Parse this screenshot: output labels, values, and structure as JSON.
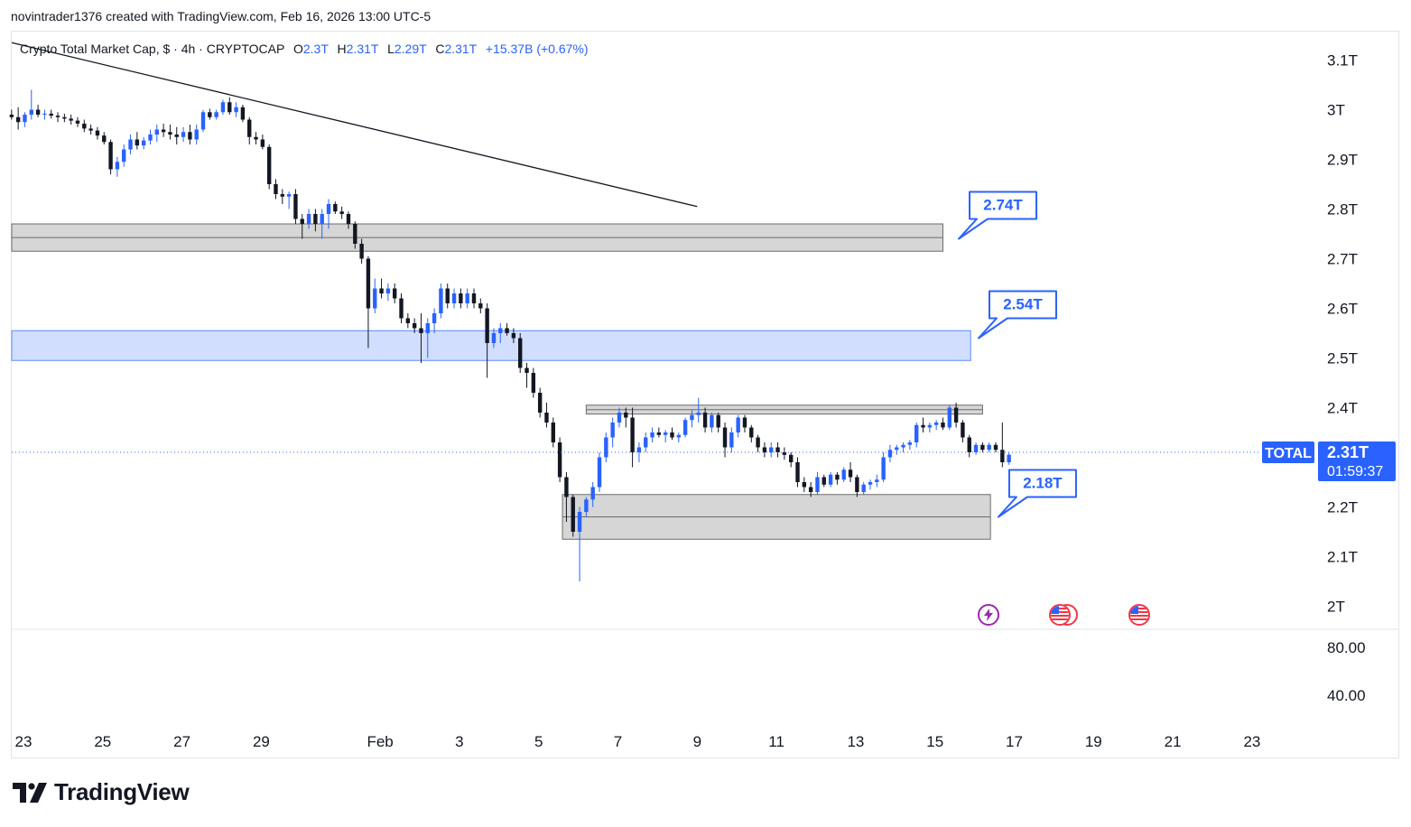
{
  "header": {
    "caption": "novintrader1376 created with TradingView.com, Feb 16, 2026 13:00 UTC-5"
  },
  "legend": {
    "symbol": "Crypto Total Market Cap, $ · 4h · CRYPTOCAP",
    "o_label": "O",
    "o_value": "2.3T",
    "h_label": "H",
    "h_value": "2.31T",
    "l_label": "L",
    "l_value": "2.29T",
    "c_label": "C",
    "c_value": "2.31T",
    "change": "+15.37B (+0.67%)"
  },
  "price_tag": {
    "symbol": "TOTAL",
    "price": "2.31T",
    "countdown": "01:59:37"
  },
  "brand": {
    "name": "TradingView"
  },
  "events": [
    {
      "icon": "lightning-icon"
    },
    {
      "icon": "us-flag-icon"
    },
    {
      "icon": "us-flag-icon"
    }
  ],
  "colors": {
    "up": "#2962ff",
    "down": "#131722",
    "zone_gray": "#d6d6d6",
    "zone_blue": "#d2defe",
    "accent": "#2962ff"
  },
  "chart_data": {
    "type": "candlestick",
    "title": "Crypto Total Market Cap, $ · 4h · CRYPTOCAP",
    "timeframe": "4h",
    "units": "trillion USD",
    "x_ticks": [
      {
        "label": "23",
        "day": 0
      },
      {
        "label": "25",
        "day": 2
      },
      {
        "label": "27",
        "day": 4
      },
      {
        "label": "29",
        "day": 6
      },
      {
        "label": "Feb",
        "day": 9
      },
      {
        "label": "3",
        "day": 11
      },
      {
        "label": "5",
        "day": 13
      },
      {
        "label": "7",
        "day": 15
      },
      {
        "label": "9",
        "day": 17
      },
      {
        "label": "11",
        "day": 19
      },
      {
        "label": "13",
        "day": 21
      },
      {
        "label": "15",
        "day": 23
      },
      {
        "label": "17",
        "day": 25
      },
      {
        "label": "19",
        "day": 27
      },
      {
        "label": "21",
        "day": 29
      },
      {
        "label": "23",
        "day": 31
      }
    ],
    "y_ticks": [
      {
        "label": "3.1T",
        "value": 3.1
      },
      {
        "label": "3T",
        "value": 3.0
      },
      {
        "label": "2.9T",
        "value": 2.9
      },
      {
        "label": "2.8T",
        "value": 2.8
      },
      {
        "label": "2.7T",
        "value": 2.7
      },
      {
        "label": "2.6T",
        "value": 2.6
      },
      {
        "label": "2.5T",
        "value": 2.5
      },
      {
        "label": "2.4T",
        "value": 2.4
      },
      {
        "label": "2.3T",
        "value": 2.3
      },
      {
        "label": "2.2T",
        "value": 2.2
      },
      {
        "label": "2.1T",
        "value": 2.1
      },
      {
        "label": "2T",
        "value": 2.0
      }
    ],
    "hidden_tick_labels": [
      "2.3T"
    ],
    "ylim": [
      1.94,
      3.12
    ],
    "last_price": 2.31,
    "indicator_ticks": [
      {
        "label": "80.00",
        "value": 80
      },
      {
        "label": "40.00",
        "value": 40
      }
    ],
    "zones": [
      {
        "kind": "supply",
        "color": "gray",
        "day_start": -0.3,
        "day_end": 23.2,
        "low": 2.715,
        "high": 2.77
      },
      {
        "kind": "supply",
        "color": "blue",
        "day_start": -0.3,
        "day_end": 23.9,
        "low": 2.495,
        "high": 2.555
      },
      {
        "kind": "range-top",
        "color": "gray",
        "day_start": 14.2,
        "day_end": 24.2,
        "low": 2.387,
        "high": 2.405
      },
      {
        "kind": "demand",
        "color": "gray",
        "day_start": 13.6,
        "day_end": 24.4,
        "low": 2.135,
        "high": 2.225
      }
    ],
    "trendline": [
      {
        "day": -0.3,
        "price": 3.135
      },
      {
        "day": 17.0,
        "price": 2.805
      }
    ],
    "callouts": [
      {
        "label": "2.74T",
        "price": 2.74,
        "day": 23.6
      },
      {
        "label": "2.54T",
        "price": 2.54,
        "day": 24.1
      },
      {
        "label": "2.18T",
        "price": 2.18,
        "day": 24.6
      }
    ],
    "candles": [
      {
        "o": 2.99,
        "h": 3.0,
        "l": 2.98,
        "c": 2.985
      },
      {
        "o": 2.985,
        "h": 3.005,
        "l": 2.96,
        "c": 2.975
      },
      {
        "o": 2.975,
        "h": 2.995,
        "l": 2.965,
        "c": 2.99
      },
      {
        "o": 2.99,
        "h": 3.04,
        "l": 2.98,
        "c": 3.0
      },
      {
        "o": 3.0,
        "h": 3.01,
        "l": 2.985,
        "c": 2.99
      },
      {
        "o": 2.99,
        "h": 3.0,
        "l": 2.98,
        "c": 2.992
      },
      {
        "o": 2.992,
        "h": 3.0,
        "l": 2.982,
        "c": 2.988
      },
      {
        "o": 2.988,
        "h": 2.995,
        "l": 2.975,
        "c": 2.985
      },
      {
        "o": 2.985,
        "h": 2.992,
        "l": 2.975,
        "c": 2.982
      },
      {
        "o": 2.982,
        "h": 2.99,
        "l": 2.97,
        "c": 2.978
      },
      {
        "o": 2.978,
        "h": 2.985,
        "l": 2.965,
        "c": 2.972
      },
      {
        "o": 2.972,
        "h": 2.98,
        "l": 2.955,
        "c": 2.962
      },
      {
        "o": 2.962,
        "h": 2.97,
        "l": 2.95,
        "c": 2.958
      },
      {
        "o": 2.958,
        "h": 2.965,
        "l": 2.94,
        "c": 2.948
      },
      {
        "o": 2.948,
        "h": 2.955,
        "l": 2.93,
        "c": 2.935
      },
      {
        "o": 2.935,
        "h": 2.94,
        "l": 2.87,
        "c": 2.88
      },
      {
        "o": 2.88,
        "h": 2.905,
        "l": 2.865,
        "c": 2.895
      },
      {
        "o": 2.895,
        "h": 2.93,
        "l": 2.885,
        "c": 2.92
      },
      {
        "o": 2.92,
        "h": 2.95,
        "l": 2.91,
        "c": 2.94
      },
      {
        "o": 2.94,
        "h": 2.955,
        "l": 2.92,
        "c": 2.928
      },
      {
        "o": 2.928,
        "h": 2.945,
        "l": 2.92,
        "c": 2.938
      },
      {
        "o": 2.938,
        "h": 2.96,
        "l": 2.93,
        "c": 2.95
      },
      {
        "o": 2.95,
        "h": 2.97,
        "l": 2.935,
        "c": 2.96
      },
      {
        "o": 2.96,
        "h": 2.972,
        "l": 2.945,
        "c": 2.955
      },
      {
        "o": 2.955,
        "h": 2.97,
        "l": 2.94,
        "c": 2.95
      },
      {
        "o": 2.95,
        "h": 2.965,
        "l": 2.93,
        "c": 2.945
      },
      {
        "o": 2.945,
        "h": 2.965,
        "l": 2.935,
        "c": 2.955
      },
      {
        "o": 2.955,
        "h": 2.97,
        "l": 2.93,
        "c": 2.94
      },
      {
        "o": 2.94,
        "h": 2.97,
        "l": 2.93,
        "c": 2.96
      },
      {
        "o": 2.96,
        "h": 3.0,
        "l": 2.955,
        "c": 2.995
      },
      {
        "o": 2.995,
        "h": 3.002,
        "l": 2.98,
        "c": 2.985
      },
      {
        "o": 2.985,
        "h": 3.0,
        "l": 2.98,
        "c": 2.995
      },
      {
        "o": 2.995,
        "h": 3.02,
        "l": 2.99,
        "c": 3.015
      },
      {
        "o": 3.015,
        "h": 3.025,
        "l": 2.99,
        "c": 2.995
      },
      {
        "o": 2.995,
        "h": 3.015,
        "l": 2.985,
        "c": 3.005
      },
      {
        "o": 3.005,
        "h": 3.01,
        "l": 2.975,
        "c": 2.98
      },
      {
        "o": 2.98,
        "h": 2.985,
        "l": 2.93,
        "c": 2.945
      },
      {
        "o": 2.945,
        "h": 2.955,
        "l": 2.93,
        "c": 2.94
      },
      {
        "o": 2.94,
        "h": 2.95,
        "l": 2.92,
        "c": 2.925
      },
      {
        "o": 2.925,
        "h": 2.93,
        "l": 2.84,
        "c": 2.85
      },
      {
        "o": 2.85,
        "h": 2.86,
        "l": 2.82,
        "c": 2.83
      },
      {
        "o": 2.83,
        "h": 2.84,
        "l": 2.81,
        "c": 2.825
      },
      {
        "o": 2.825,
        "h": 2.835,
        "l": 2.8,
        "c": 2.83
      },
      {
        "o": 2.83,
        "h": 2.84,
        "l": 2.77,
        "c": 2.78
      },
      {
        "o": 2.78,
        "h": 2.79,
        "l": 2.74,
        "c": 2.77
      },
      {
        "o": 2.77,
        "h": 2.8,
        "l": 2.76,
        "c": 2.79
      },
      {
        "o": 2.79,
        "h": 2.8,
        "l": 2.755,
        "c": 2.77
      },
      {
        "o": 2.77,
        "h": 2.8,
        "l": 2.74,
        "c": 2.79
      },
      {
        "o": 2.79,
        "h": 2.82,
        "l": 2.76,
        "c": 2.81
      },
      {
        "o": 2.81,
        "h": 2.815,
        "l": 2.79,
        "c": 2.795
      },
      {
        "o": 2.795,
        "h": 2.805,
        "l": 2.78,
        "c": 2.79
      },
      {
        "o": 2.79,
        "h": 2.795,
        "l": 2.76,
        "c": 2.77
      },
      {
        "o": 2.77,
        "h": 2.775,
        "l": 2.72,
        "c": 2.73
      },
      {
        "o": 2.73,
        "h": 2.74,
        "l": 2.69,
        "c": 2.7
      },
      {
        "o": 2.7,
        "h": 2.705,
        "l": 2.52,
        "c": 2.6
      },
      {
        "o": 2.6,
        "h": 2.66,
        "l": 2.59,
        "c": 2.64
      },
      {
        "o": 2.64,
        "h": 2.66,
        "l": 2.62,
        "c": 2.63
      },
      {
        "o": 2.63,
        "h": 2.65,
        "l": 2.615,
        "c": 2.64
      },
      {
        "o": 2.64,
        "h": 2.65,
        "l": 2.61,
        "c": 2.62
      },
      {
        "o": 2.62,
        "h": 2.63,
        "l": 2.57,
        "c": 2.58
      },
      {
        "o": 2.58,
        "h": 2.59,
        "l": 2.56,
        "c": 2.57
      },
      {
        "o": 2.57,
        "h": 2.58,
        "l": 2.55,
        "c": 2.56
      },
      {
        "o": 2.56,
        "h": 2.59,
        "l": 2.49,
        "c": 2.55
      },
      {
        "o": 2.55,
        "h": 2.58,
        "l": 2.5,
        "c": 2.57
      },
      {
        "o": 2.57,
        "h": 2.6,
        "l": 2.55,
        "c": 2.59
      },
      {
        "o": 2.59,
        "h": 2.65,
        "l": 2.58,
        "c": 2.64
      },
      {
        "o": 2.64,
        "h": 2.65,
        "l": 2.6,
        "c": 2.61
      },
      {
        "o": 2.61,
        "h": 2.64,
        "l": 2.6,
        "c": 2.63
      },
      {
        "o": 2.63,
        "h": 2.64,
        "l": 2.6,
        "c": 2.61
      },
      {
        "o": 2.61,
        "h": 2.64,
        "l": 2.6,
        "c": 2.63
      },
      {
        "o": 2.63,
        "h": 2.64,
        "l": 2.6,
        "c": 2.61
      },
      {
        "o": 2.61,
        "h": 2.62,
        "l": 2.59,
        "c": 2.6
      },
      {
        "o": 2.6,
        "h": 2.61,
        "l": 2.46,
        "c": 2.53
      },
      {
        "o": 2.53,
        "h": 2.56,
        "l": 2.52,
        "c": 2.55
      },
      {
        "o": 2.55,
        "h": 2.57,
        "l": 2.53,
        "c": 2.56
      },
      {
        "o": 2.56,
        "h": 2.57,
        "l": 2.545,
        "c": 2.55
      },
      {
        "o": 2.55,
        "h": 2.56,
        "l": 2.53,
        "c": 2.54
      },
      {
        "o": 2.54,
        "h": 2.55,
        "l": 2.47,
        "c": 2.48
      },
      {
        "o": 2.48,
        "h": 2.49,
        "l": 2.44,
        "c": 2.47
      },
      {
        "o": 2.47,
        "h": 2.48,
        "l": 2.42,
        "c": 2.43
      },
      {
        "o": 2.43,
        "h": 2.44,
        "l": 2.38,
        "c": 2.39
      },
      {
        "o": 2.39,
        "h": 2.41,
        "l": 2.36,
        "c": 2.37
      },
      {
        "o": 2.37,
        "h": 2.38,
        "l": 2.32,
        "c": 2.33
      },
      {
        "o": 2.33,
        "h": 2.34,
        "l": 2.25,
        "c": 2.26
      },
      {
        "o": 2.26,
        "h": 2.27,
        "l": 2.17,
        "c": 2.22
      },
      {
        "o": 2.22,
        "h": 2.225,
        "l": 2.14,
        "c": 2.15
      },
      {
        "o": 2.15,
        "h": 2.2,
        "l": 2.05,
        "c": 2.19
      },
      {
        "o": 2.19,
        "h": 2.22,
        "l": 2.18,
        "c": 2.215
      },
      {
        "o": 2.215,
        "h": 2.25,
        "l": 2.2,
        "c": 2.24
      },
      {
        "o": 2.24,
        "h": 2.31,
        "l": 2.23,
        "c": 2.3
      },
      {
        "o": 2.3,
        "h": 2.35,
        "l": 2.29,
        "c": 2.34
      },
      {
        "o": 2.34,
        "h": 2.38,
        "l": 2.32,
        "c": 2.37
      },
      {
        "o": 2.37,
        "h": 2.4,
        "l": 2.36,
        "c": 2.39
      },
      {
        "o": 2.39,
        "h": 2.4,
        "l": 2.36,
        "c": 2.38
      },
      {
        "o": 2.38,
        "h": 2.4,
        "l": 2.28,
        "c": 2.31
      },
      {
        "o": 2.31,
        "h": 2.33,
        "l": 2.29,
        "c": 2.32
      },
      {
        "o": 2.32,
        "h": 2.35,
        "l": 2.31,
        "c": 2.34
      },
      {
        "o": 2.34,
        "h": 2.36,
        "l": 2.33,
        "c": 2.35
      },
      {
        "o": 2.35,
        "h": 2.36,
        "l": 2.34,
        "c": 2.345
      },
      {
        "o": 2.345,
        "h": 2.355,
        "l": 2.33,
        "c": 2.35
      },
      {
        "o": 2.35,
        "h": 2.36,
        "l": 2.335,
        "c": 2.34
      },
      {
        "o": 2.34,
        "h": 2.35,
        "l": 2.33,
        "c": 2.345
      },
      {
        "o": 2.345,
        "h": 2.38,
        "l": 2.34,
        "c": 2.375
      },
      {
        "o": 2.375,
        "h": 2.395,
        "l": 2.36,
        "c": 2.385
      },
      {
        "o": 2.385,
        "h": 2.42,
        "l": 2.37,
        "c": 2.39
      },
      {
        "o": 2.39,
        "h": 2.4,
        "l": 2.35,
        "c": 2.36
      },
      {
        "o": 2.36,
        "h": 2.39,
        "l": 2.35,
        "c": 2.385
      },
      {
        "o": 2.385,
        "h": 2.39,
        "l": 2.35,
        "c": 2.36
      },
      {
        "o": 2.36,
        "h": 2.37,
        "l": 2.3,
        "c": 2.32
      },
      {
        "o": 2.32,
        "h": 2.36,
        "l": 2.31,
        "c": 2.35
      },
      {
        "o": 2.35,
        "h": 2.385,
        "l": 2.34,
        "c": 2.38
      },
      {
        "o": 2.38,
        "h": 2.385,
        "l": 2.35,
        "c": 2.36
      },
      {
        "o": 2.36,
        "h": 2.365,
        "l": 2.33,
        "c": 2.34
      },
      {
        "o": 2.34,
        "h": 2.345,
        "l": 2.31,
        "c": 2.32
      },
      {
        "o": 2.32,
        "h": 2.33,
        "l": 2.3,
        "c": 2.31
      },
      {
        "o": 2.31,
        "h": 2.33,
        "l": 2.3,
        "c": 2.32
      },
      {
        "o": 2.32,
        "h": 2.33,
        "l": 2.3,
        "c": 2.31
      },
      {
        "o": 2.31,
        "h": 2.32,
        "l": 2.295,
        "c": 2.305
      },
      {
        "o": 2.305,
        "h": 2.31,
        "l": 2.28,
        "c": 2.29
      },
      {
        "o": 2.29,
        "h": 2.3,
        "l": 2.24,
        "c": 2.25
      },
      {
        "o": 2.25,
        "h": 2.26,
        "l": 2.23,
        "c": 2.24
      },
      {
        "o": 2.24,
        "h": 2.25,
        "l": 2.22,
        "c": 2.23
      },
      {
        "o": 2.23,
        "h": 2.27,
        "l": 2.225,
        "c": 2.26
      },
      {
        "o": 2.26,
        "h": 2.265,
        "l": 2.24,
        "c": 2.245
      },
      {
        "o": 2.245,
        "h": 2.27,
        "l": 2.24,
        "c": 2.265
      },
      {
        "o": 2.265,
        "h": 2.27,
        "l": 2.245,
        "c": 2.255
      },
      {
        "o": 2.255,
        "h": 2.28,
        "l": 2.25,
        "c": 2.275
      },
      {
        "o": 2.275,
        "h": 2.29,
        "l": 2.25,
        "c": 2.26
      },
      {
        "o": 2.26,
        "h": 2.265,
        "l": 2.22,
        "c": 2.23
      },
      {
        "o": 2.23,
        "h": 2.25,
        "l": 2.225,
        "c": 2.245
      },
      {
        "o": 2.245,
        "h": 2.255,
        "l": 2.235,
        "c": 2.25
      },
      {
        "o": 2.25,
        "h": 2.265,
        "l": 2.24,
        "c": 2.255
      },
      {
        "o": 2.255,
        "h": 2.31,
        "l": 2.25,
        "c": 2.3
      },
      {
        "o": 2.3,
        "h": 2.325,
        "l": 2.29,
        "c": 2.315
      },
      {
        "o": 2.315,
        "h": 2.325,
        "l": 2.305,
        "c": 2.32
      },
      {
        "o": 2.32,
        "h": 2.33,
        "l": 2.31,
        "c": 2.325
      },
      {
        "o": 2.325,
        "h": 2.335,
        "l": 2.315,
        "c": 2.33
      },
      {
        "o": 2.33,
        "h": 2.37,
        "l": 2.32,
        "c": 2.365
      },
      {
        "o": 2.365,
        "h": 2.38,
        "l": 2.35,
        "c": 2.36
      },
      {
        "o": 2.36,
        "h": 2.37,
        "l": 2.35,
        "c": 2.365
      },
      {
        "o": 2.365,
        "h": 2.375,
        "l": 2.355,
        "c": 2.37
      },
      {
        "o": 2.37,
        "h": 2.38,
        "l": 2.355,
        "c": 2.36
      },
      {
        "o": 2.36,
        "h": 2.405,
        "l": 2.355,
        "c": 2.4
      },
      {
        "o": 2.4,
        "h": 2.41,
        "l": 2.36,
        "c": 2.37
      },
      {
        "o": 2.37,
        "h": 2.375,
        "l": 2.33,
        "c": 2.34
      },
      {
        "o": 2.34,
        "h": 2.345,
        "l": 2.3,
        "c": 2.31
      },
      {
        "o": 2.31,
        "h": 2.33,
        "l": 2.305,
        "c": 2.325
      },
      {
        "o": 2.325,
        "h": 2.33,
        "l": 2.31,
        "c": 2.315
      },
      {
        "o": 2.315,
        "h": 2.33,
        "l": 2.31,
        "c": 2.325
      },
      {
        "o": 2.325,
        "h": 2.33,
        "l": 2.31,
        "c": 2.315
      },
      {
        "o": 2.315,
        "h": 2.37,
        "l": 2.28,
        "c": 2.29
      },
      {
        "o": 2.29,
        "h": 2.31,
        "l": 2.285,
        "c": 2.305
      }
    ]
  }
}
